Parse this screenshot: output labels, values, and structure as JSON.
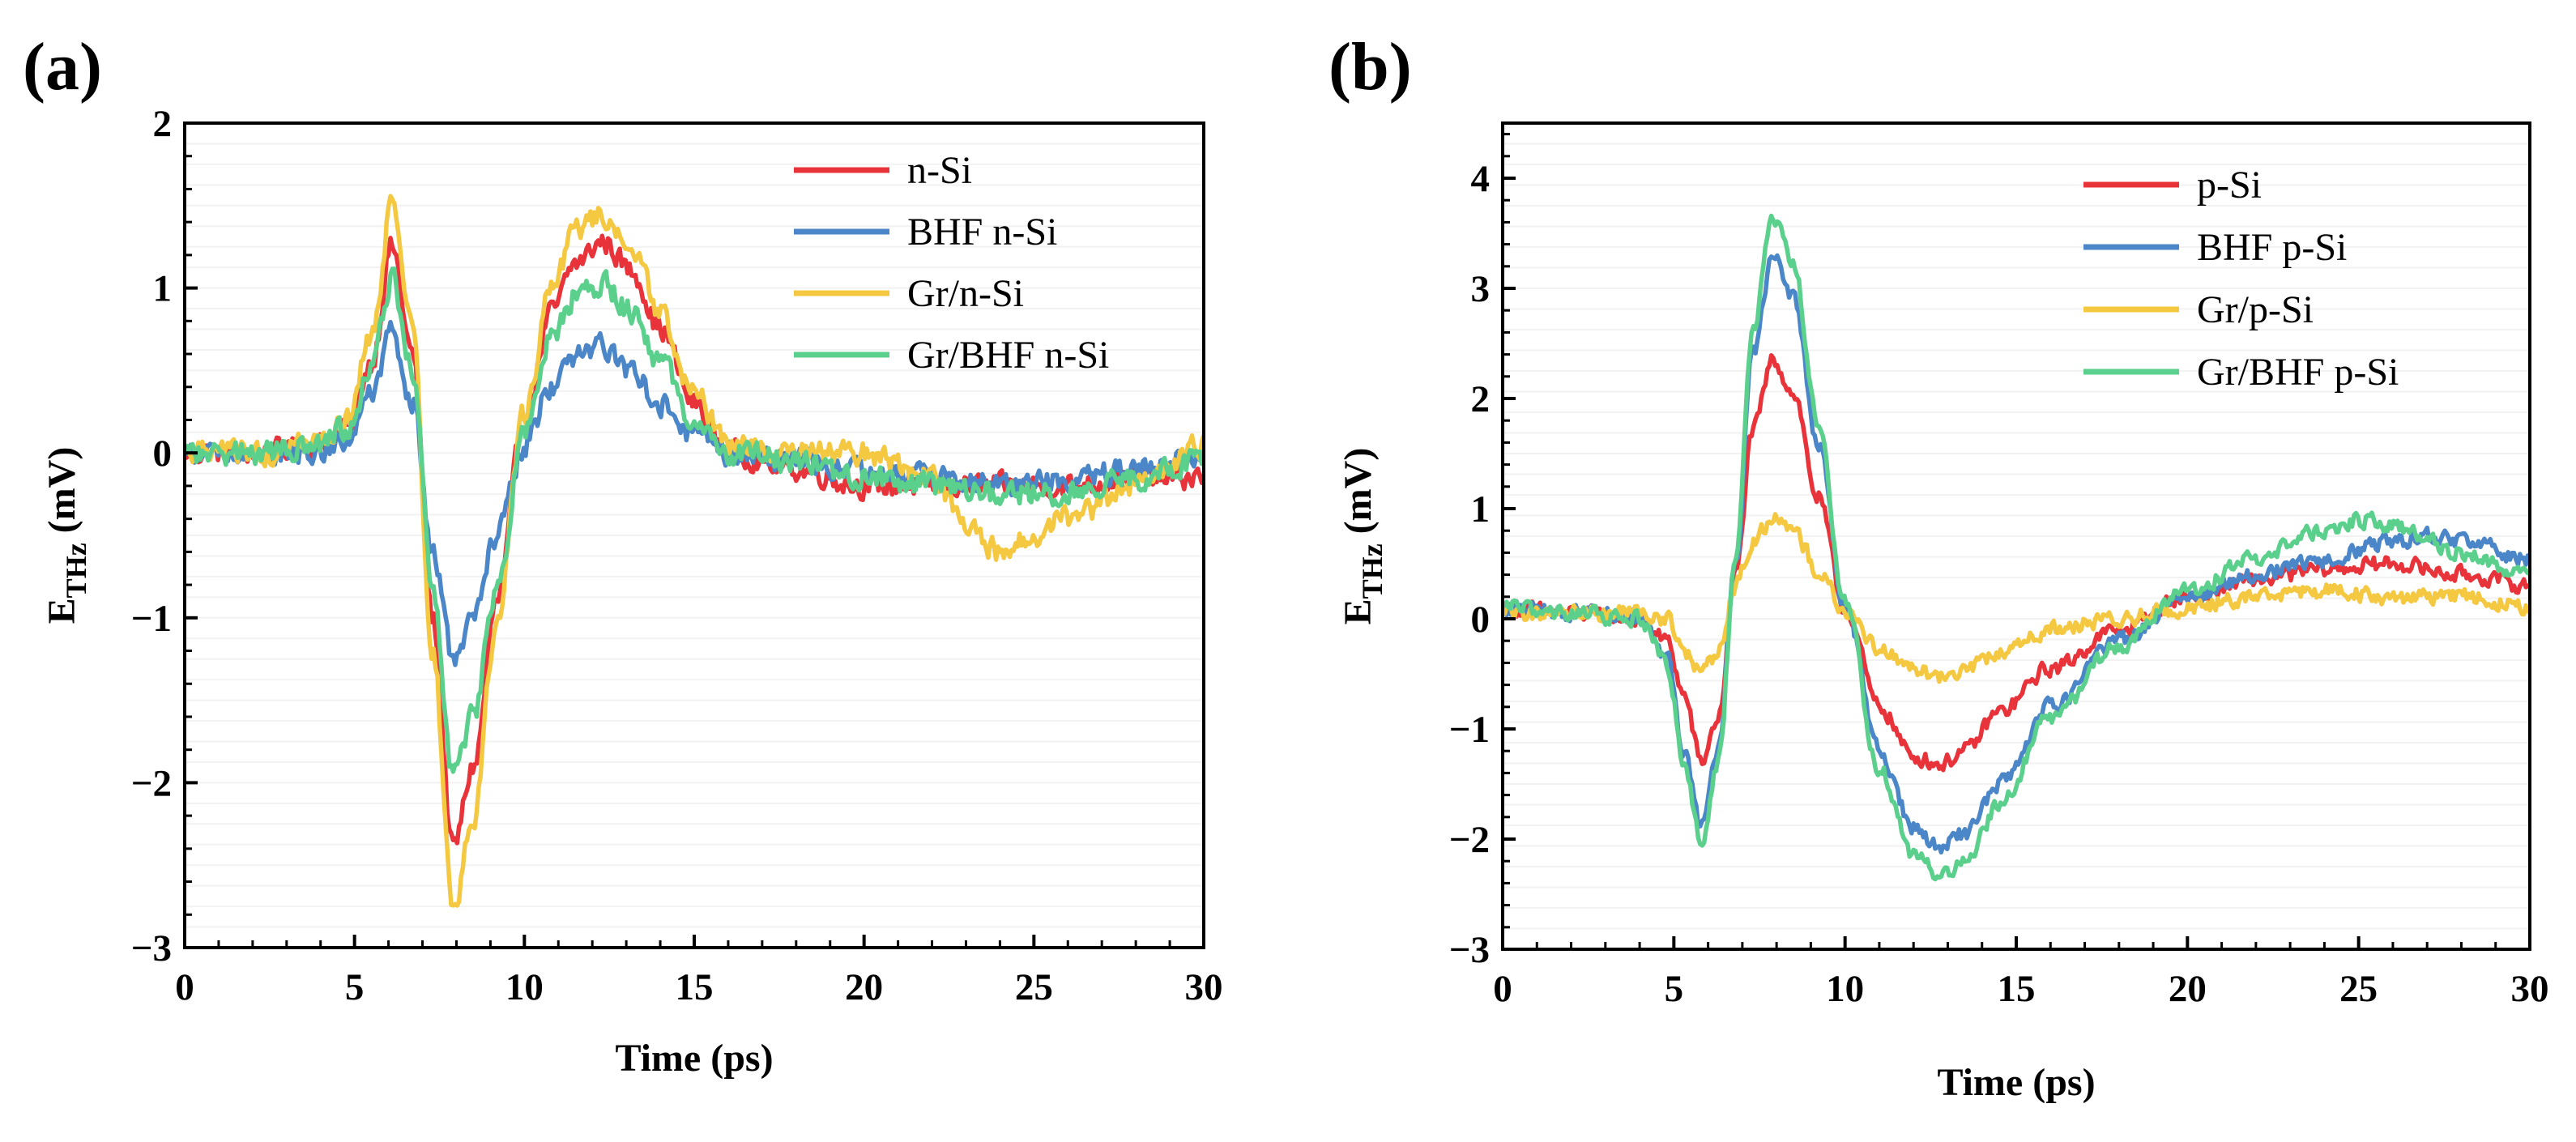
{
  "chart_data": [
    {
      "type": "line",
      "panel_label": "(a)",
      "xlabel": "Time (ps)",
      "ylabel_main": "E",
      "ylabel_sub": "THz",
      "ylabel_unit": " (mV)",
      "xlim": [
        0,
        30
      ],
      "ylim": [
        -3,
        2
      ],
      "x_ticks": [
        0,
        5,
        10,
        15,
        20,
        25,
        30
      ],
      "x_tick_labels": [
        "0",
        "5",
        "10",
        "15",
        "20",
        "25",
        "30"
      ],
      "y_ticks": [
        -3,
        -2,
        -1,
        0,
        1,
        2
      ],
      "y_tick_labels": [
        "−3",
        "−2",
        "−1",
        "0",
        "1",
        "2"
      ],
      "legend_position": "top-right",
      "series": [
        {
          "name": "n-Si",
          "color": "#e8333a",
          "x": [
            0,
            2,
            4,
            4.8,
            5.5,
            6.1,
            6.7,
            7.3,
            7.9,
            8.5,
            9.2,
            10,
            10.8,
            11.5,
            12.3,
            13.2,
            14,
            15,
            16,
            18,
            20,
            22,
            24,
            26,
            28,
            30
          ],
          "y": [
            0,
            0,
            0.05,
            0.15,
            0.55,
            1.25,
            0.6,
            -1.0,
            -2.4,
            -1.9,
            -0.9,
            0.2,
            0.85,
            1.15,
            1.28,
            1.1,
            0.75,
            0.3,
            0,
            -0.1,
            -0.2,
            -0.2,
            -0.2,
            -0.2,
            -0.15,
            -0.15
          ]
        },
        {
          "name": "BHF n-Si",
          "color": "#4a86c8",
          "x": [
            0,
            2,
            4,
            4.8,
            5.5,
            6.1,
            6.7,
            7.3,
            7.9,
            8.5,
            9.2,
            10,
            10.8,
            11.5,
            12.3,
            13.2,
            14,
            15,
            16,
            18,
            20,
            22,
            24,
            26,
            28,
            30
          ],
          "y": [
            0,
            0,
            0,
            0.1,
            0.35,
            0.72,
            0.3,
            -0.6,
            -1.25,
            -1.0,
            -0.5,
            0.05,
            0.4,
            0.58,
            0.65,
            0.5,
            0.3,
            0.1,
            0,
            -0.05,
            -0.1,
            -0.15,
            -0.2,
            -0.15,
            -0.1,
            0
          ]
        },
        {
          "name": "Gr/n-Si",
          "color": "#f5c842",
          "x": [
            0,
            2,
            4,
            4.8,
            5.5,
            6.1,
            6.7,
            7.3,
            7.9,
            8.5,
            9.2,
            10,
            10.8,
            11.5,
            12.3,
            13.2,
            14,
            15,
            16,
            18,
            20,
            22,
            23,
            24,
            25,
            26,
            28,
            30
          ],
          "y": [
            0,
            0,
            0.05,
            0.2,
            0.7,
            1.48,
            0.75,
            -1.2,
            -2.75,
            -2.2,
            -1.0,
            0.25,
            1.0,
            1.35,
            1.45,
            1.25,
            0.85,
            0.35,
            0.05,
            0,
            0,
            -0.15,
            -0.45,
            -0.6,
            -0.5,
            -0.4,
            -0.2,
            0.05
          ]
        },
        {
          "name": "Gr/BHF n-Si",
          "color": "#5bd08c",
          "x": [
            0,
            2,
            4,
            4.8,
            5.5,
            6.1,
            6.7,
            7.3,
            7.9,
            8.5,
            9.2,
            10,
            10.8,
            11.5,
            12.3,
            13.2,
            14,
            15,
            16,
            18,
            20,
            22,
            24,
            26,
            28,
            30
          ],
          "y": [
            0,
            0,
            0.05,
            0.15,
            0.5,
            1.05,
            0.5,
            -0.85,
            -1.95,
            -1.6,
            -0.8,
            0.15,
            0.7,
            0.95,
            1.02,
            0.85,
            0.55,
            0.2,
            0,
            -0.05,
            -0.15,
            -0.2,
            -0.25,
            -0.25,
            -0.15,
            -0.05
          ]
        }
      ],
      "legend": [
        "n-Si",
        "BHF n-Si",
        "Gr/n-Si",
        "Gr/BHF n-Si"
      ]
    },
    {
      "type": "line",
      "panel_label": "(b)",
      "xlabel": "Time (ps)",
      "ylabel_main": "E",
      "ylabel_sub": "THz",
      "ylabel_unit": " (mV)",
      "xlim": [
        0,
        30
      ],
      "ylim": [
        -3,
        4.5
      ],
      "x_ticks": [
        0,
        5,
        10,
        15,
        20,
        25,
        30
      ],
      "x_tick_labels": [
        "0",
        "5",
        "10",
        "15",
        "20",
        "25",
        "30"
      ],
      "y_ticks": [
        -3,
        -2,
        -1,
        0,
        1,
        2,
        3,
        4
      ],
      "y_tick_labels": [
        "−3",
        "−2",
        "−1",
        "0",
        "1",
        "2",
        "3",
        "4"
      ],
      "legend_position": "top-right",
      "series": [
        {
          "name": "p-Si",
          "color": "#e8333a",
          "x": [
            0,
            2,
            4,
            4.8,
            5.3,
            5.8,
            6.3,
            6.8,
            7.3,
            7.9,
            8.5,
            9.2,
            10,
            11,
            12,
            12.8,
            13.5,
            14.5,
            16,
            18,
            20,
            22,
            24,
            26,
            28,
            30
          ],
          "y": [
            0.1,
            0.05,
            0,
            -0.2,
            -0.7,
            -1.3,
            -0.9,
            0.4,
            1.7,
            2.35,
            2.05,
            1.1,
            0.1,
            -0.8,
            -1.25,
            -1.32,
            -1.2,
            -0.85,
            -0.45,
            -0.1,
            0.2,
            0.35,
            0.45,
            0.5,
            0.4,
            0.3
          ]
        },
        {
          "name": "BHF p-Si",
          "color": "#4a86c8",
          "x": [
            0,
            2,
            4,
            4.8,
            5.3,
            5.8,
            6.3,
            6.8,
            7.3,
            7.9,
            8.5,
            9.2,
            10,
            11,
            12,
            12.8,
            13.5,
            14.5,
            16,
            18,
            20,
            22,
            24,
            26,
            27,
            28,
            30
          ],
          "y": [
            0.1,
            0.05,
            0,
            -0.35,
            -1.2,
            -1.9,
            -1.2,
            0.5,
            2.4,
            3.28,
            2.9,
            1.6,
            0.1,
            -1.2,
            -1.9,
            -2.08,
            -1.95,
            -1.5,
            -0.8,
            -0.2,
            0.2,
            0.4,
            0.55,
            0.7,
            0.75,
            0.7,
            0.55
          ]
        },
        {
          "name": "Gr/p-Si",
          "color": "#f5c842",
          "x": [
            0,
            2,
            4,
            4.8,
            5.3,
            5.8,
            6.3,
            6.8,
            7.3,
            7.9,
            8.5,
            9.2,
            10,
            11,
            12,
            12.8,
            13.5,
            14.5,
            16,
            18,
            20,
            22,
            24,
            26,
            28,
            30
          ],
          "y": [
            0.05,
            0.05,
            0.05,
            0,
            -0.3,
            -0.5,
            -0.3,
            0.3,
            0.7,
            0.92,
            0.8,
            0.45,
            0.05,
            -0.25,
            -0.45,
            -0.52,
            -0.45,
            -0.3,
            -0.1,
            0,
            0.1,
            0.2,
            0.25,
            0.2,
            0.2,
            0.1
          ]
        },
        {
          "name": "Gr/BHF p-Si",
          "color": "#5bd08c",
          "x": [
            0,
            2,
            4,
            4.8,
            5.3,
            5.8,
            6.3,
            6.8,
            7.3,
            7.9,
            8.5,
            9.2,
            10,
            11,
            12,
            12.8,
            13.5,
            14.5,
            16,
            18,
            20,
            22,
            24,
            25,
            26,
            28,
            30
          ],
          "y": [
            0.1,
            0.05,
            0,
            -0.4,
            -1.3,
            -2.05,
            -1.3,
            0.5,
            2.6,
            3.62,
            3.2,
            1.8,
            0.15,
            -1.35,
            -2.15,
            -2.35,
            -2.2,
            -1.7,
            -0.9,
            -0.25,
            0.25,
            0.55,
            0.8,
            0.9,
            0.85,
            0.6,
            0.4
          ]
        }
      ],
      "legend": [
        "p-Si",
        "BHF p-Si",
        "Gr/p-Si",
        "Gr/BHF p-Si"
      ]
    }
  ]
}
